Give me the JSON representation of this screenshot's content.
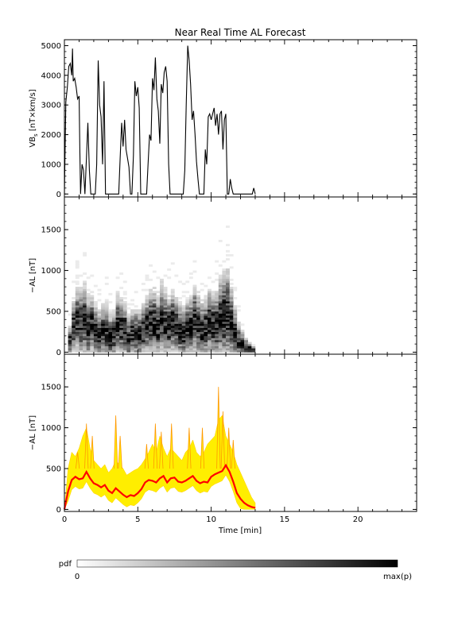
{
  "chart_data": [
    {
      "type": "line",
      "title": "Near Real Time AL Forecast",
      "ylabel_main": "VB",
      "ylabel_sub": "s",
      "ylabel_rest": " [nT×km/s]",
      "xlim": [
        0,
        24
      ],
      "ylim": [
        -100,
        5200
      ],
      "yticks": [
        0,
        1000,
        2000,
        3000,
        4000,
        5000
      ],
      "yticklabels": [
        "0",
        "1000",
        "2000",
        "3000",
        "4000",
        "5000"
      ],
      "color": "#000000",
      "x": [
        0.0,
        0.1,
        0.2,
        0.3,
        0.4,
        0.5,
        0.55,
        0.6,
        0.7,
        0.8,
        0.9,
        1.0,
        1.05,
        1.1,
        1.2,
        1.3,
        1.4,
        1.5,
        1.6,
        1.7,
        1.8,
        1.9,
        2.0,
        2.1,
        2.2,
        2.3,
        2.4,
        2.5,
        2.6,
        2.7,
        2.8,
        2.9,
        3.0,
        3.1,
        3.2,
        3.3,
        3.4,
        3.5,
        3.6,
        3.7,
        3.8,
        3.9,
        4.0,
        4.1,
        4.2,
        4.3,
        4.4,
        4.5,
        4.6,
        4.7,
        4.8,
        4.9,
        5.0,
        5.1,
        5.2,
        5.3,
        5.4,
        5.5,
        5.6,
        5.7,
        5.8,
        5.9,
        6.0,
        6.1,
        6.2,
        6.3,
        6.4,
        6.5,
        6.6,
        6.7,
        6.8,
        6.9,
        7.0,
        7.1,
        7.2,
        7.3,
        7.4,
        7.5,
        7.6,
        7.7,
        7.8,
        7.9,
        8.0,
        8.1,
        8.2,
        8.3,
        8.4,
        8.5,
        8.6,
        8.7,
        8.8,
        8.9,
        9.0,
        9.1,
        9.2,
        9.3,
        9.4,
        9.5,
        9.6,
        9.7,
        9.8,
        9.9,
        10.0,
        10.1,
        10.2,
        10.3,
        10.4,
        10.5,
        10.6,
        10.7,
        10.8,
        10.9,
        11.0,
        11.1,
        11.2,
        11.3,
        11.4,
        11.5,
        11.6,
        11.7,
        11.8,
        11.9,
        12.0,
        12.1,
        12.2,
        12.3,
        12.4,
        12.5,
        12.6,
        12.7,
        12.8,
        12.9,
        13.0
      ],
      "y": [
        0,
        3100,
        3600,
        4300,
        4400,
        4000,
        4900,
        3800,
        3900,
        3600,
        3200,
        3300,
        1500,
        0,
        1000,
        800,
        0,
        1200,
        2400,
        800,
        0,
        0,
        0,
        0,
        1000,
        4500,
        3000,
        2600,
        1000,
        3800,
        0,
        0,
        0,
        0,
        0,
        0,
        0,
        0,
        0,
        0,
        1200,
        2400,
        1600,
        2500,
        1500,
        1200,
        900,
        0,
        0,
        1300,
        3800,
        3300,
        3600,
        2900,
        0,
        0,
        0,
        0,
        0,
        1000,
        2000,
        1800,
        3900,
        3500,
        4600,
        3200,
        2800,
        1700,
        3700,
        3400,
        4100,
        4300,
        3800,
        1000,
        0,
        0,
        0,
        0,
        0,
        0,
        0,
        0,
        0,
        0,
        800,
        3000,
        5000,
        4500,
        3700,
        2500,
        2800,
        2000,
        1100,
        500,
        0,
        0,
        0,
        0,
        1500,
        1000,
        2600,
        2700,
        2500,
        2700,
        2900,
        2300,
        2700,
        2000,
        2700,
        2800,
        1500,
        2500,
        2700,
        0,
        0,
        500,
        200,
        0,
        0,
        0,
        0,
        0,
        0,
        0,
        0,
        0,
        0,
        0,
        0,
        0,
        0,
        200,
        0
      ]
    },
    {
      "type": "heatmap",
      "ylabel": "−AL [nT]",
      "xlim": [
        0,
        24
      ],
      "ylim": [
        -25,
        1900
      ],
      "yticks": [
        0,
        500,
        1000,
        1500
      ],
      "yticklabels": [
        "0",
        "500",
        "1000",
        "1500"
      ],
      "t": [
        0,
        0.25,
        0.5,
        0.75,
        1.0,
        1.25,
        1.5,
        1.75,
        2.0,
        2.25,
        2.5,
        2.75,
        3.0,
        3.25,
        3.5,
        3.75,
        4.0,
        4.25,
        4.5,
        4.75,
        5.0,
        5.25,
        5.5,
        5.75,
        6.0,
        6.25,
        6.5,
        6.75,
        7.0,
        7.25,
        7.5,
        7.75,
        8.0,
        8.25,
        8.5,
        8.75,
        9.0,
        9.25,
        9.5,
        9.75,
        10.0,
        10.25,
        10.5,
        10.75,
        11.0,
        11.25,
        11.5,
        11.75,
        12.0,
        12.25,
        12.5,
        12.75,
        13.0
      ],
      "median": [
        0,
        120,
        300,
        380,
        340,
        380,
        280,
        320,
        250,
        210,
        240,
        250,
        170,
        200,
        330,
        300,
        260,
        150,
        200,
        220,
        200,
        250,
        310,
        360,
        350,
        290,
        400,
        330,
        300,
        350,
        300,
        250,
        220,
        280,
        300,
        380,
        310,
        260,
        280,
        350,
        320,
        310,
        400,
        420,
        450,
        350,
        220,
        120,
        80,
        50,
        30,
        20,
        10
      ],
      "spread": [
        0,
        200,
        350,
        420,
        450,
        500,
        420,
        400,
        350,
        320,
        350,
        380,
        300,
        330,
        400,
        380,
        360,
        300,
        320,
        330,
        320,
        350,
        380,
        420,
        450,
        430,
        480,
        450,
        400,
        420,
        380,
        360,
        340,
        380,
        400,
        450,
        420,
        380,
        400,
        450,
        430,
        450,
        550,
        600,
        620,
        500,
        350,
        250,
        180,
        120,
        80,
        50,
        20
      ]
    },
    {
      "type": "area",
      "ylabel": "−AL [nT]",
      "xlabel": "Time [min]",
      "xlim": [
        0,
        24
      ],
      "ylim": [
        -25,
        1900
      ],
      "xticks": [
        0,
        5,
        10,
        15,
        20
      ],
      "xticklabels": [
        "0",
        "5",
        "10",
        "15",
        "20"
      ],
      "yticks": [
        0,
        500,
        1000,
        1500
      ],
      "yticklabels": [
        "0",
        "500",
        "1000",
        "1500"
      ],
      "series": [
        {
          "color": "#ff0000",
          "x": [
            0,
            0.25,
            0.5,
            0.75,
            1.0,
            1.25,
            1.5,
            1.75,
            2.0,
            2.25,
            2.5,
            2.75,
            3.0,
            3.25,
            3.5,
            3.75,
            4.0,
            4.25,
            4.5,
            4.75,
            5.0,
            5.25,
            5.5,
            5.75,
            6.0,
            6.25,
            6.5,
            6.75,
            7.0,
            7.25,
            7.5,
            7.75,
            8.0,
            8.25,
            8.5,
            8.75,
            9.0,
            9.25,
            9.5,
            9.75,
            10.0,
            10.25,
            10.5,
            10.75,
            11.0,
            11.25,
            11.5,
            11.75,
            12.0,
            12.25,
            12.5,
            12.75,
            13.0
          ],
          "y": [
            0,
            220,
            360,
            400,
            370,
            380,
            460,
            380,
            320,
            300,
            270,
            300,
            230,
            200,
            260,
            220,
            180,
            150,
            175,
            165,
            200,
            250,
            330,
            360,
            350,
            330,
            380,
            410,
            330,
            380,
            390,
            340,
            330,
            350,
            380,
            410,
            350,
            320,
            340,
            330,
            400,
            430,
            450,
            470,
            540,
            460,
            340,
            200,
            130,
            80,
            50,
            30,
            20
          ]
        },
        {
          "color": "#ffee00",
          "upper": [
            0,
            500,
            700,
            650,
            750,
            900,
            1000,
            750,
            600,
            550,
            500,
            550,
            450,
            500,
            600,
            550,
            500,
            420,
            450,
            480,
            500,
            550,
            620,
            700,
            800,
            700,
            900,
            750,
            650,
            750,
            700,
            650,
            600,
            700,
            750,
            850,
            700,
            650,
            700,
            800,
            850,
            900,
            1100,
            1150,
            900,
            800,
            700,
            550,
            450,
            350,
            250,
            150,
            80
          ]
        },
        {
          "color": "#ff9900",
          "peaks": [
            [
              0.9,
              700
            ],
            [
              1.5,
              1050
            ],
            [
              1.9,
              900
            ],
            [
              3.5,
              1150
            ],
            [
              3.8,
              900
            ],
            [
              5.6,
              800
            ],
            [
              6.2,
              1050
            ],
            [
              6.6,
              950
            ],
            [
              7.3,
              1050
            ],
            [
              8.5,
              1000
            ],
            [
              9.4,
              1000
            ],
            [
              10.5,
              1500
            ],
            [
              10.8,
              1200
            ],
            [
              11.2,
              1000
            ],
            [
              11.5,
              850
            ]
          ]
        }
      ]
    },
    {
      "type": "colorbar",
      "label": "pdf",
      "min_label": "0",
      "max_label": "max(p)"
    }
  ]
}
